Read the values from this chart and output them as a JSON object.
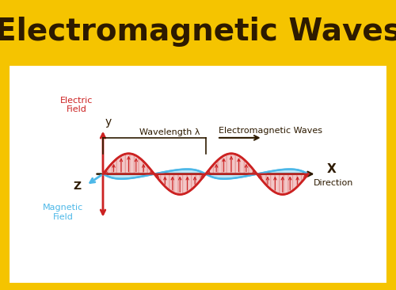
{
  "title": "Electromagnetic Waves",
  "title_color": "#2d1a00",
  "title_bg": "#f5c400",
  "title_fontsize": 28,
  "background_color": "#ffffff",
  "border_color": "#f5c400",
  "electric_color": "#cc2222",
  "magnetic_color": "#4db8e8",
  "axis_color": "#2d1a00",
  "arrow_color": "#2d1a00",
  "labels": {
    "electric_field": "Electric\nField",
    "magnetic_field": "Magnetic\nField",
    "x_axis": "X",
    "y_axis": "y",
    "z_axis": "Z",
    "wavelength": "Wavelength λ",
    "em_waves": "Electromagnetic Waves",
    "direction": "Direction"
  }
}
